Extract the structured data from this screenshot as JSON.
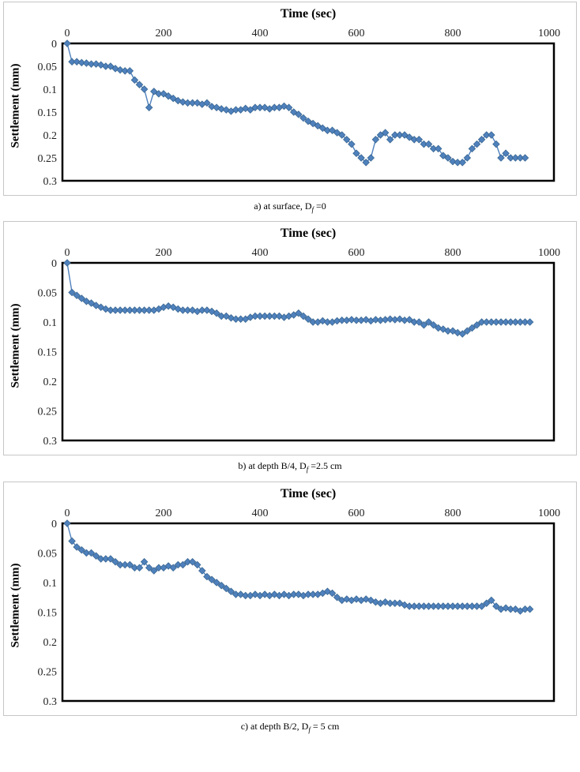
{
  "style": {
    "marker_color": "#4F81BD",
    "marker_edge_color": "#3A6791",
    "line_color": "#4F81BD",
    "axis_border_color": "#000000",
    "tick_label_color": "#1f1f1f",
    "panel_border_color": "#c6c6c6"
  },
  "chart_data": [
    {
      "type": "scatter-line",
      "title": "Time (sec)",
      "xlabel": "Time (sec)",
      "xlabel_position": "top",
      "ylabel": "Settlement (mm)",
      "caption": {
        "prefix": "a) at surface, D",
        "sub": "f",
        "suffix": " =0"
      },
      "xlim": [
        0,
        1000
      ],
      "ylim": [
        0,
        0.3
      ],
      "y_inverted": true,
      "grid": false,
      "legend": "none",
      "x_ticks": [
        0,
        200,
        400,
        600,
        800,
        1000
      ],
      "y_ticks": [
        0,
        0.05,
        0.1,
        0.15,
        0.2,
        0.25,
        0.3
      ],
      "x": [
        0,
        10,
        20,
        30,
        40,
        50,
        60,
        70,
        80,
        90,
        100,
        110,
        120,
        130,
        140,
        150,
        160,
        170,
        180,
        190,
        200,
        210,
        220,
        230,
        240,
        250,
        260,
        270,
        280,
        290,
        300,
        310,
        320,
        330,
        340,
        350,
        360,
        370,
        380,
        390,
        400,
        410,
        420,
        430,
        440,
        450,
        460,
        470,
        480,
        490,
        500,
        510,
        520,
        530,
        540,
        550,
        560,
        570,
        580,
        590,
        600,
        610,
        620,
        630,
        640,
        650,
        660,
        670,
        680,
        690,
        700,
        710,
        720,
        730,
        740,
        750,
        760,
        770,
        780,
        790,
        800,
        810,
        820,
        830,
        840,
        850,
        860,
        870,
        880,
        890,
        900,
        910,
        920,
        930,
        940,
        950
      ],
      "y": [
        0,
        0.04,
        0.04,
        0.042,
        0.043,
        0.045,
        0.045,
        0.047,
        0.05,
        0.05,
        0.055,
        0.058,
        0.06,
        0.06,
        0.08,
        0.09,
        0.1,
        0.14,
        0.105,
        0.11,
        0.11,
        0.115,
        0.12,
        0.125,
        0.128,
        0.13,
        0.13,
        0.13,
        0.133,
        0.13,
        0.138,
        0.14,
        0.143,
        0.145,
        0.148,
        0.145,
        0.145,
        0.142,
        0.145,
        0.14,
        0.14,
        0.14,
        0.143,
        0.14,
        0.14,
        0.137,
        0.14,
        0.15,
        0.155,
        0.163,
        0.17,
        0.175,
        0.18,
        0.185,
        0.19,
        0.19,
        0.195,
        0.2,
        0.21,
        0.22,
        0.24,
        0.25,
        0.26,
        0.25,
        0.21,
        0.2,
        0.195,
        0.21,
        0.2,
        0.2,
        0.2,
        0.205,
        0.21,
        0.21,
        0.22,
        0.22,
        0.23,
        0.23,
        0.245,
        0.25,
        0.258,
        0.26,
        0.26,
        0.25,
        0.23,
        0.22,
        0.21,
        0.2,
        0.2,
        0.22,
        0.25,
        0.24,
        0.25,
        0.25,
        0.25,
        0.25
      ]
    },
    {
      "type": "scatter-line",
      "title": "Time (sec)",
      "xlabel": "Time (sec)",
      "xlabel_position": "top",
      "ylabel": "Settlement (mm)",
      "caption": {
        "prefix": "b) at depth B/4, D",
        "sub": "f",
        "suffix": " =2.5 cm"
      },
      "xlim": [
        0,
        1000
      ],
      "ylim": [
        0,
        0.3
      ],
      "y_inverted": true,
      "grid": false,
      "legend": "none",
      "x_ticks": [
        0,
        200,
        400,
        600,
        800,
        1000
      ],
      "y_ticks": [
        0,
        0.05,
        0.1,
        0.15,
        0.2,
        0.25,
        0.3
      ],
      "x": [
        0,
        10,
        20,
        30,
        40,
        50,
        60,
        70,
        80,
        90,
        100,
        110,
        120,
        130,
        140,
        150,
        160,
        170,
        180,
        190,
        200,
        210,
        220,
        230,
        240,
        250,
        260,
        270,
        280,
        290,
        300,
        310,
        320,
        330,
        340,
        350,
        360,
        370,
        380,
        390,
        400,
        410,
        420,
        430,
        440,
        450,
        460,
        470,
        480,
        490,
        500,
        510,
        520,
        530,
        540,
        550,
        560,
        570,
        580,
        590,
        600,
        610,
        620,
        630,
        640,
        650,
        660,
        670,
        680,
        690,
        700,
        710,
        720,
        730,
        740,
        750,
        760,
        770,
        780,
        790,
        800,
        810,
        820,
        830,
        840,
        850,
        860,
        870,
        880,
        890,
        900,
        910,
        920,
        930,
        940,
        950,
        960
      ],
      "y": [
        0,
        0.05,
        0.055,
        0.06,
        0.065,
        0.068,
        0.072,
        0.075,
        0.078,
        0.08,
        0.08,
        0.08,
        0.08,
        0.08,
        0.08,
        0.08,
        0.08,
        0.08,
        0.08,
        0.078,
        0.075,
        0.073,
        0.075,
        0.078,
        0.08,
        0.08,
        0.08,
        0.082,
        0.08,
        0.08,
        0.082,
        0.085,
        0.09,
        0.09,
        0.093,
        0.095,
        0.095,
        0.095,
        0.092,
        0.09,
        0.09,
        0.09,
        0.09,
        0.09,
        0.09,
        0.092,
        0.09,
        0.088,
        0.085,
        0.09,
        0.095,
        0.1,
        0.1,
        0.098,
        0.1,
        0.1,
        0.098,
        0.097,
        0.097,
        0.096,
        0.097,
        0.097,
        0.096,
        0.098,
        0.096,
        0.097,
        0.096,
        0.095,
        0.096,
        0.095,
        0.097,
        0.096,
        0.1,
        0.1,
        0.105,
        0.1,
        0.105,
        0.11,
        0.112,
        0.115,
        0.115,
        0.118,
        0.12,
        0.115,
        0.11,
        0.105,
        0.1,
        0.1,
        0.1,
        0.1,
        0.1,
        0.1,
        0.1,
        0.1,
        0.1,
        0.1,
        0.1
      ]
    },
    {
      "type": "scatter-line",
      "title": "Time (sec)",
      "xlabel": "Time (sec)",
      "xlabel_position": "top",
      "ylabel": "Settlement (mm)",
      "caption": {
        "prefix": "c) at depth B/2, D",
        "sub": "f",
        "suffix": " = 5 cm"
      },
      "xlim": [
        0,
        1000
      ],
      "ylim": [
        0,
        0.3
      ],
      "y_inverted": true,
      "grid": false,
      "legend": "none",
      "x_ticks": [
        0,
        200,
        400,
        600,
        800,
        1000
      ],
      "y_ticks": [
        0,
        0.05,
        0.1,
        0.15,
        0.2,
        0.25,
        0.3
      ],
      "x": [
        0,
        10,
        20,
        30,
        40,
        50,
        60,
        70,
        80,
        90,
        100,
        110,
        120,
        130,
        140,
        150,
        160,
        170,
        180,
        190,
        200,
        210,
        220,
        230,
        240,
        250,
        260,
        270,
        280,
        290,
        300,
        310,
        320,
        330,
        340,
        350,
        360,
        370,
        380,
        390,
        400,
        410,
        420,
        430,
        440,
        450,
        460,
        470,
        480,
        490,
        500,
        510,
        520,
        530,
        540,
        550,
        560,
        570,
        580,
        590,
        600,
        610,
        620,
        630,
        640,
        650,
        660,
        670,
        680,
        690,
        700,
        710,
        720,
        730,
        740,
        750,
        760,
        770,
        780,
        790,
        800,
        810,
        820,
        830,
        840,
        850,
        860,
        870,
        880,
        890,
        900,
        910,
        920,
        930,
        940,
        950,
        960
      ],
      "y": [
        0,
        0.03,
        0.04,
        0.045,
        0.05,
        0.05,
        0.055,
        0.06,
        0.06,
        0.06,
        0.065,
        0.07,
        0.07,
        0.07,
        0.075,
        0.075,
        0.065,
        0.075,
        0.08,
        0.075,
        0.075,
        0.072,
        0.075,
        0.07,
        0.07,
        0.065,
        0.065,
        0.07,
        0.08,
        0.09,
        0.095,
        0.1,
        0.105,
        0.11,
        0.115,
        0.12,
        0.12,
        0.122,
        0.122,
        0.12,
        0.122,
        0.12,
        0.122,
        0.12,
        0.122,
        0.12,
        0.122,
        0.12,
        0.12,
        0.122,
        0.12,
        0.12,
        0.12,
        0.118,
        0.115,
        0.118,
        0.125,
        0.13,
        0.128,
        0.13,
        0.128,
        0.13,
        0.128,
        0.13,
        0.133,
        0.135,
        0.133,
        0.135,
        0.135,
        0.135,
        0.138,
        0.14,
        0.14,
        0.14,
        0.14,
        0.14,
        0.14,
        0.14,
        0.14,
        0.14,
        0.14,
        0.14,
        0.14,
        0.14,
        0.14,
        0.14,
        0.14,
        0.135,
        0.13,
        0.14,
        0.145,
        0.143,
        0.145,
        0.145,
        0.148,
        0.145,
        0.145
      ]
    }
  ]
}
